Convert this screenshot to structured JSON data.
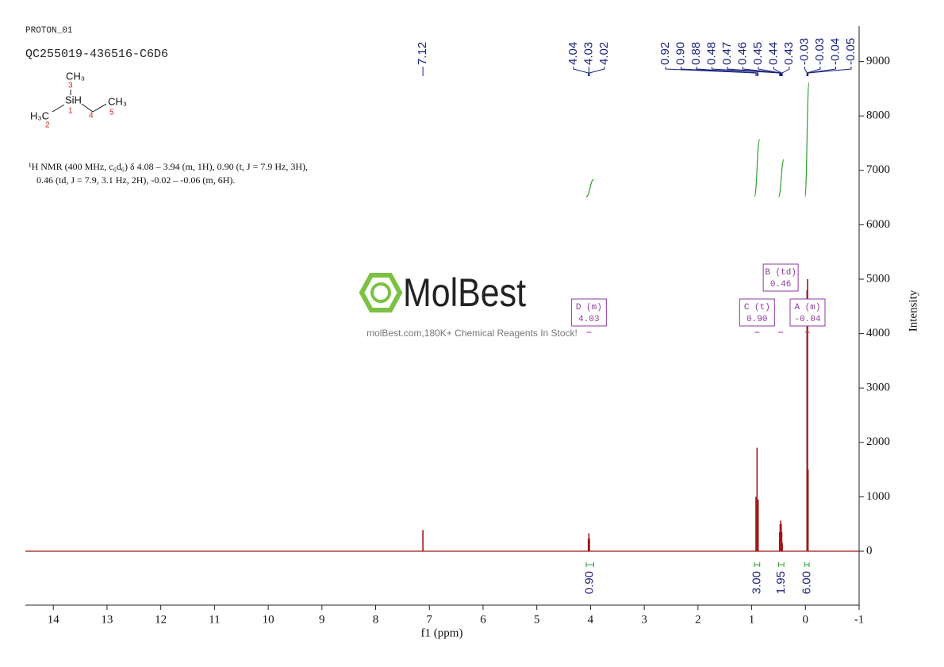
{
  "chart_data": {
    "type": "spectrum",
    "sample_id": "PROTON_01",
    "title": "QC255019-436516-C6D6",
    "structure_labels": {
      "ch3_top": "CH₃",
      "sih": "SiH",
      "h3c": "H₃C",
      "ch3_right": "CH₃",
      "n3": "3",
      "n1": "1",
      "n2": "2",
      "n4": "4",
      "n5": "5"
    },
    "description": [
      "¹H NMR (400 MHz, c₆d₆) δ 4.08 – 3.94 (m, 1H), 0.90 (t, J = 7.9 Hz, 3H),",
      "0.46 (td, J = 7.9, 3.1 Hz, 2H), -0.02 – -0.06 (m, 6H)."
    ],
    "watermark": "MolBest",
    "watermark_subtitle": "molBest.com,180K+ Chemical Reagents In Stock!",
    "xlabel": "f1 (ppm)",
    "ylabel": "Intensity",
    "xlim": [
      14.52,
      -1
    ],
    "xticks": [
      14,
      13,
      12,
      11,
      10,
      9,
      8,
      7,
      6,
      5,
      4,
      3,
      2,
      1,
      0,
      -1
    ],
    "ylim": [
      -991,
      9650
    ],
    "yticks": [
      0,
      1000,
      2000,
      3000,
      4000,
      5000,
      6000,
      7000,
      8000,
      9000
    ],
    "color": "#a01818",
    "peaks": {
      "x": [
        7.12,
        4.04,
        4.03,
        4.02,
        0.92,
        0.9,
        0.88,
        0.48,
        0.47,
        0.46,
        0.45,
        0.44,
        0.43,
        -0.03,
        -0.04,
        -0.05
      ],
      "intensity": [
        390,
        230,
        330,
        230,
        1000,
        1900,
        950,
        350,
        500,
        560,
        500,
        350,
        150,
        4800,
        5000,
        1500
      ]
    },
    "peak_labels": [
      7.12,
      4.04,
      4.03,
      4.02,
      0.92,
      {
        "value": 0.9,
        "label": "0.90"
      },
      0.88,
      0.48,
      0.47,
      0.46,
      0.45,
      0.44,
      0.43,
      -0.03,
      -0.03,
      -0.04,
      -0.05
    ],
    "multiplets": [
      {
        "name": "D (m)",
        "shift": 4.03
      },
      {
        "name": "C (t)",
        "shift": {
          "value": 0.9,
          "label": "0.90"
        }
      },
      {
        "name": "B (td)",
        "shift": 0.46
      },
      {
        "name": "A (m)",
        "shift": -0.04
      }
    ],
    "integrals": [
      {
        "range": [
          4.08,
          3.94
        ],
        "value": {
          "value": 0.9,
          "label": "0.90"
        }
      },
      {
        "range": [
          0.95,
          0.85
        ],
        "value": {
          "value": 3,
          "label": "3.00"
        }
      },
      {
        "range": [
          0.5,
          0.4
        ],
        "value": 1.95
      },
      {
        "range": [
          0.01,
          -0.07
        ],
        "value": {
          "value": 6,
          "label": "6.00"
        }
      }
    ]
  }
}
